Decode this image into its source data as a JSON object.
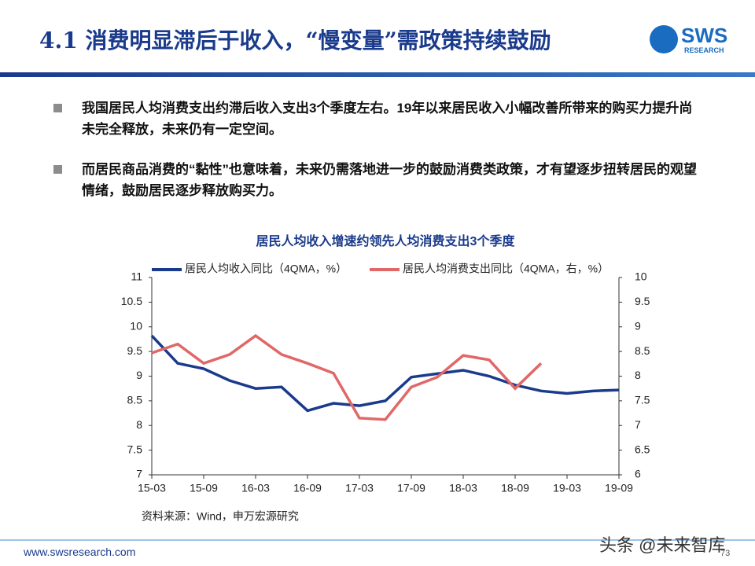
{
  "header": {
    "title": "4.1 消费明显滞后于收入，“慢变量”需政策持续鼓励",
    "logo": "SWS",
    "logo_sub": "RESEARCH"
  },
  "bullets": [
    "我国居民人均消费支出约滞后收入支出3个季度左右。19年以来居民收入小幅改善所带来的购买力提升尚未完全释放，未来仍有一定空间。",
    "而居民商品消费的“黏性”也意味着，未来仍需落地进一步的鼓励消费类政策，才有望逐步扭转居民的观望情绪，鼓励居民逐步释放购买力。"
  ],
  "chart_data": {
    "type": "line",
    "title": "居民人均收入增速约领先人均消费支出3个季度",
    "categories": [
      "15-03",
      null,
      "15-09",
      null,
      "16-03",
      null,
      "16-09",
      null,
      "17-03",
      null,
      "17-09",
      null,
      "18-03",
      null,
      "18-09",
      null,
      "19-03",
      null,
      "19-09"
    ],
    "series": [
      {
        "name": "居民人均收入同比（4QMA，%）",
        "color": "#1a3a8c",
        "axis": "y",
        "values": [
          9.82,
          9.26,
          9.15,
          8.91,
          8.75,
          8.78,
          8.3,
          8.45,
          8.4,
          8.5,
          8.98,
          9.05,
          9.12,
          9.0,
          8.82,
          8.7,
          8.65,
          8.7,
          8.72
        ]
      },
      {
        "name": "居民人均消费支出同比（4QMA，右，%）",
        "color": "#e06868",
        "axis": "y2",
        "values": [
          8.47,
          8.65,
          8.26,
          8.44,
          8.82,
          8.44,
          8.26,
          8.06,
          7.15,
          7.12,
          7.78,
          7.98,
          8.42,
          8.33,
          7.75,
          8.26,
          null,
          null,
          null
        ]
      }
    ],
    "ylim": [
      7,
      11
    ],
    "yticks": [
      7,
      7.5,
      8,
      8.5,
      9,
      9.5,
      10,
      10.5,
      11
    ],
    "y2lim": [
      6,
      10
    ],
    "y2ticks": [
      6,
      6.5,
      7,
      7.5,
      8,
      8.5,
      9,
      9.5,
      10
    ],
    "grid": false,
    "legend": "top"
  },
  "source": "资料来源：Wind，申万宏源研究",
  "footer": {
    "url": "www.swsresearch.com",
    "page": "73"
  },
  "watermark": "头条 @未来智库"
}
